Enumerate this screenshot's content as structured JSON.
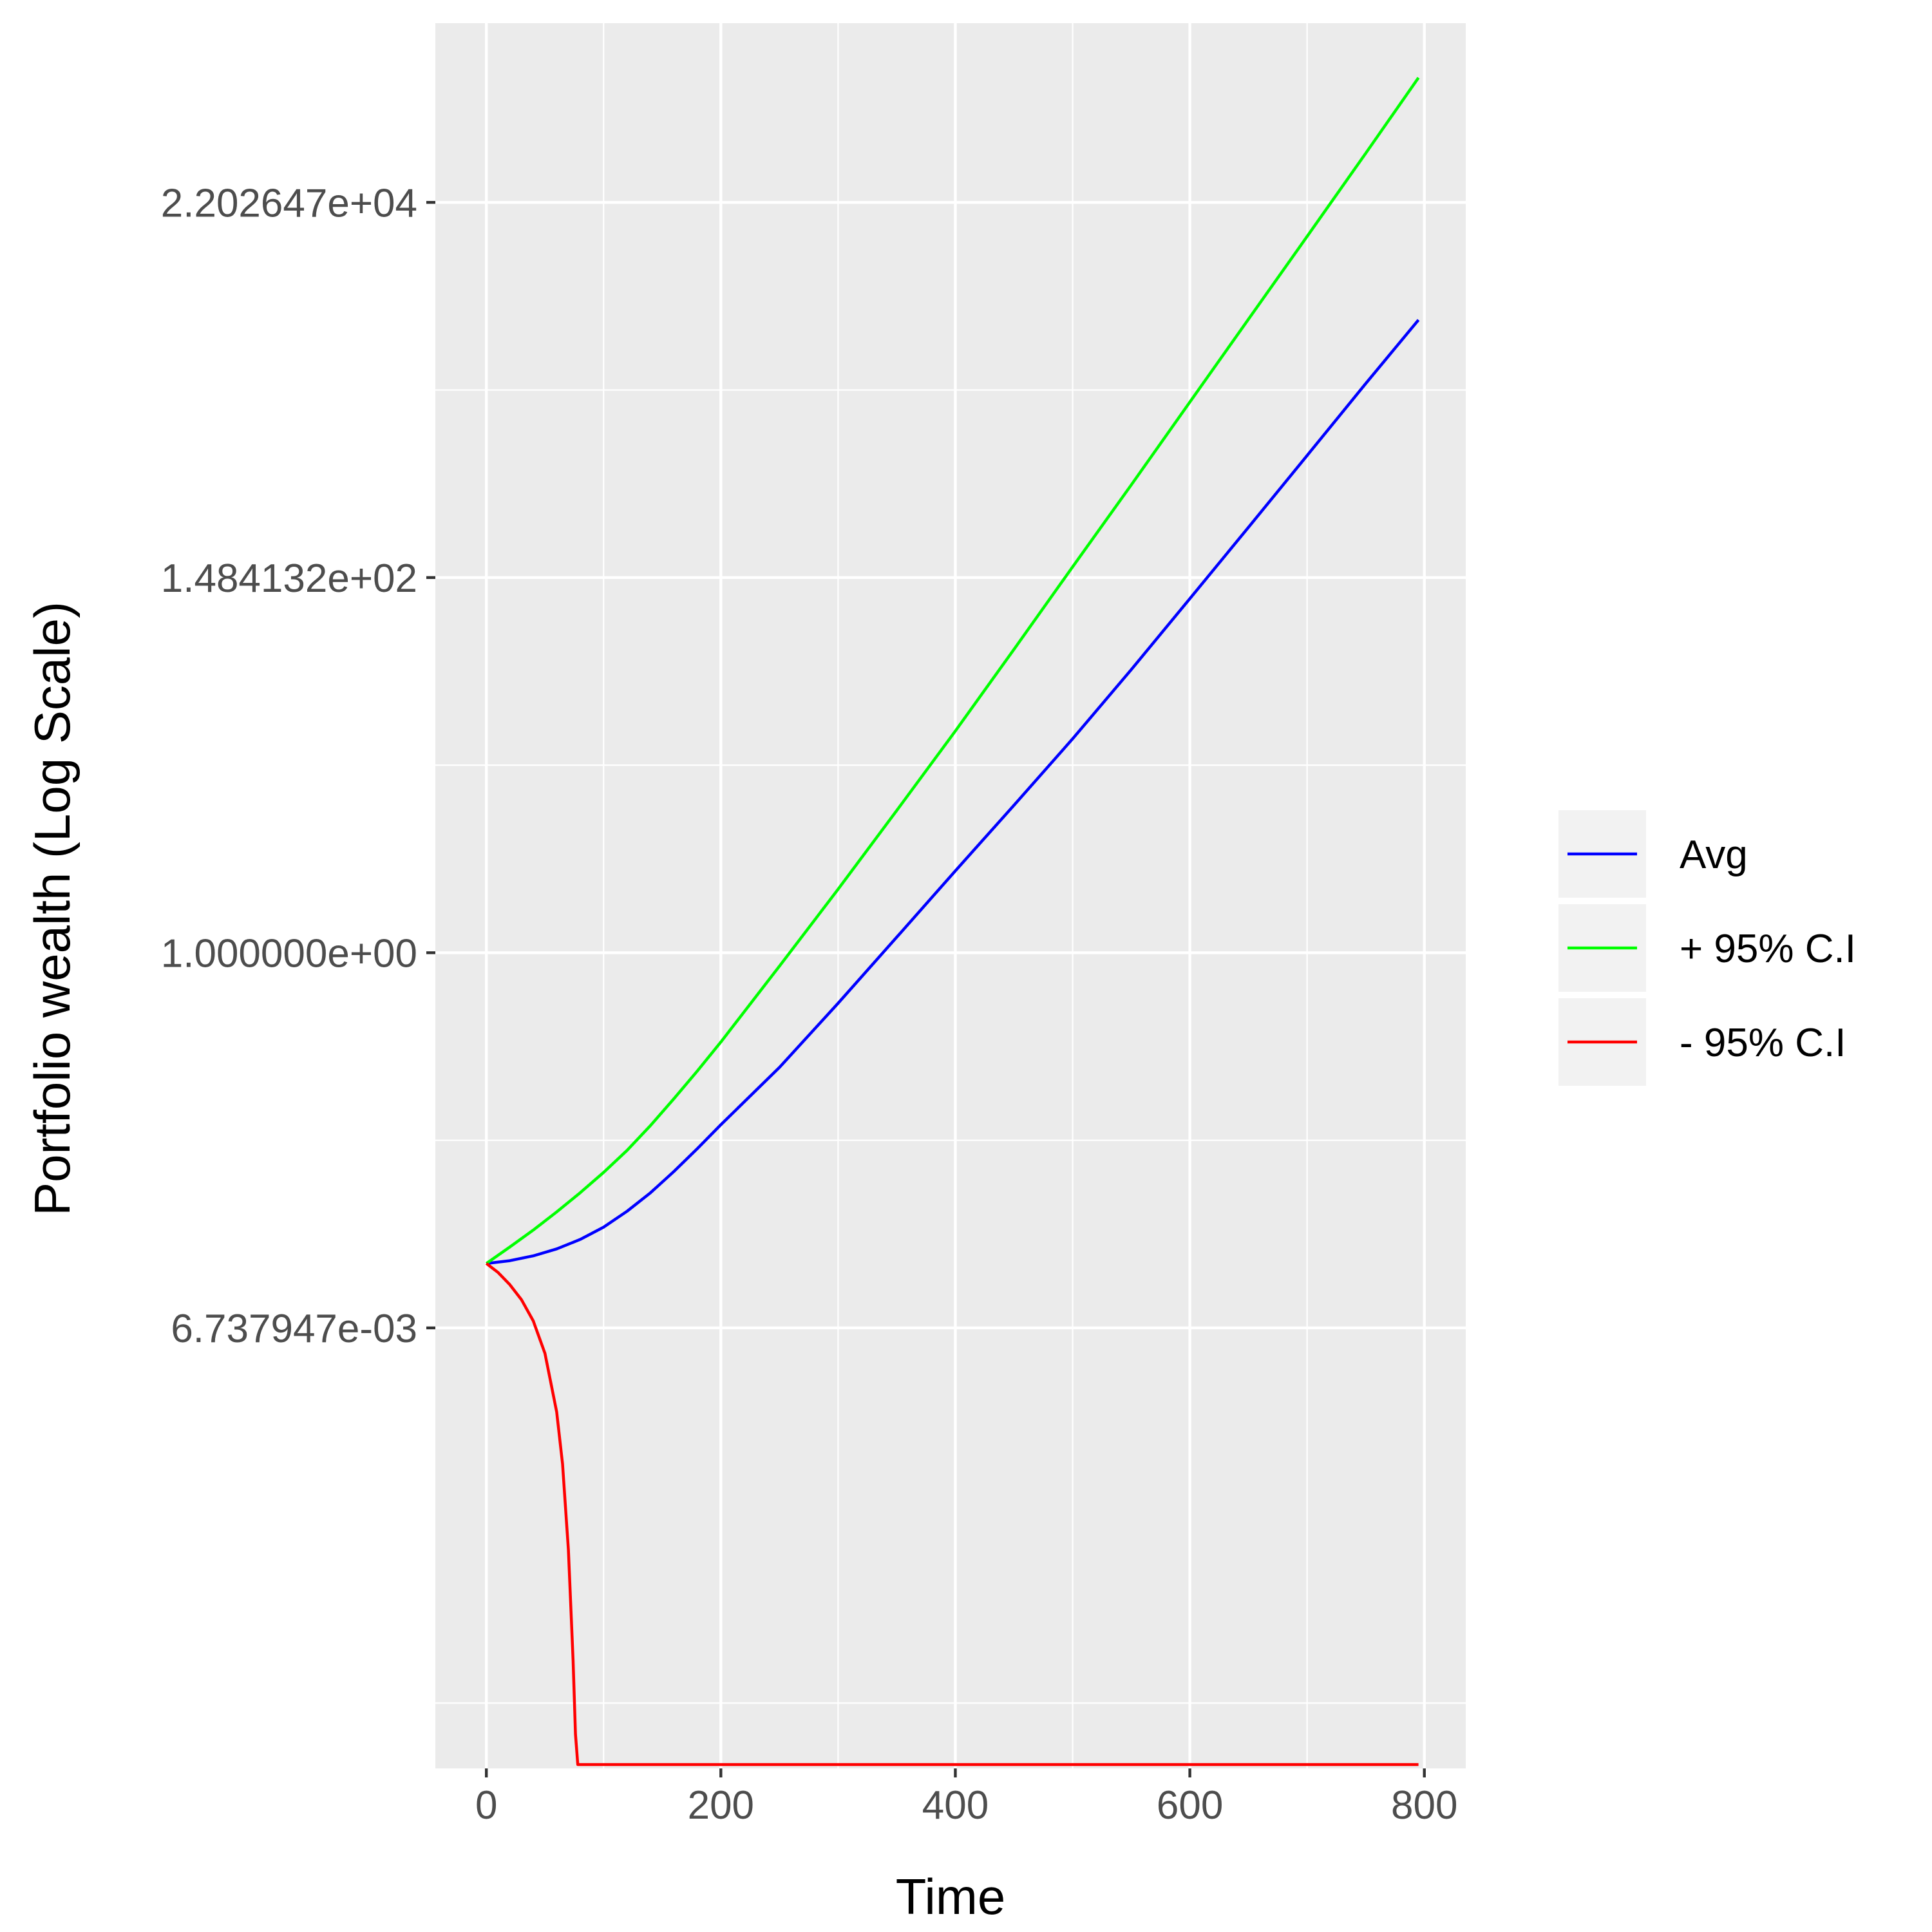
{
  "chart_data": {
    "type": "line",
    "title": "",
    "xlabel": "Time",
    "ylabel": "Portfolio wealth (Log Scale)",
    "y_scale": "log",
    "xlim": [
      -43.5,
      835.3
    ],
    "ylim": [
      1.9e-05,
      240000
    ],
    "grid": true,
    "legend_position": "right",
    "x_ticks": [
      {
        "value": 0,
        "label": "0"
      },
      {
        "value": 200,
        "label": "200"
      },
      {
        "value": 400,
        "label": "400"
      },
      {
        "value": 600,
        "label": "600"
      },
      {
        "value": 800,
        "label": "800"
      }
    ],
    "x_minor_ticks": [
      100,
      300,
      500,
      700
    ],
    "y_ticks": [
      {
        "value": 0.006737947,
        "label": "6.737947e-03"
      },
      {
        "value": 1.0,
        "label": "1.000000e+00"
      },
      {
        "value": 148.4132,
        "label": "1.484132e+02"
      },
      {
        "value": 22026.47,
        "label": "2.202647e+04"
      }
    ],
    "y_minor_ticks": [
      4.54e-05,
      0.082085,
      12.18249,
      1808.042
    ],
    "series": [
      {
        "name": "Avg",
        "color": "#0000ff",
        "x": [
          0,
          20,
          40,
          60,
          80,
          100,
          120,
          140,
          160,
          180,
          200,
          250,
          300,
          350,
          400,
          450,
          500,
          550,
          600,
          650,
          700,
          750,
          795
        ],
        "y": [
          0.0159,
          0.0165,
          0.0176,
          0.0193,
          0.0219,
          0.0258,
          0.0319,
          0.0408,
          0.0542,
          0.0735,
          0.101,
          0.217,
          0.51,
          1.23,
          2.98,
          7.14,
          17.3,
          43.5,
          112,
          290,
          755,
          1970,
          4600
        ]
      },
      {
        "name": "+ 95% C.I",
        "color": "#00ff00",
        "x": [
          0,
          20,
          40,
          60,
          80,
          100,
          120,
          140,
          160,
          180,
          200,
          250,
          300,
          350,
          400,
          450,
          500,
          550,
          600,
          650,
          700,
          750,
          795
        ],
        "y": [
          0.0159,
          0.0198,
          0.0248,
          0.0316,
          0.0408,
          0.0535,
          0.0718,
          0.1,
          0.143,
          0.207,
          0.304,
          0.837,
          2.33,
          6.65,
          19.2,
          57,
          171,
          510,
          1540,
          4640,
          14000,
          42400,
          116000
        ]
      },
      {
        "name": "- 95% C.I",
        "color": "#ff0000",
        "x": [
          0,
          10,
          20,
          30,
          40,
          50,
          60,
          65,
          70,
          74,
          76,
          78,
          795
        ],
        "y": [
          0.0159,
          0.0141,
          0.012,
          0.0098,
          0.0074,
          0.0048,
          0.0022,
          0.0011,
          0.00035,
          8e-05,
          3e-05,
          2e-05,
          2e-05
        ]
      }
    ]
  }
}
